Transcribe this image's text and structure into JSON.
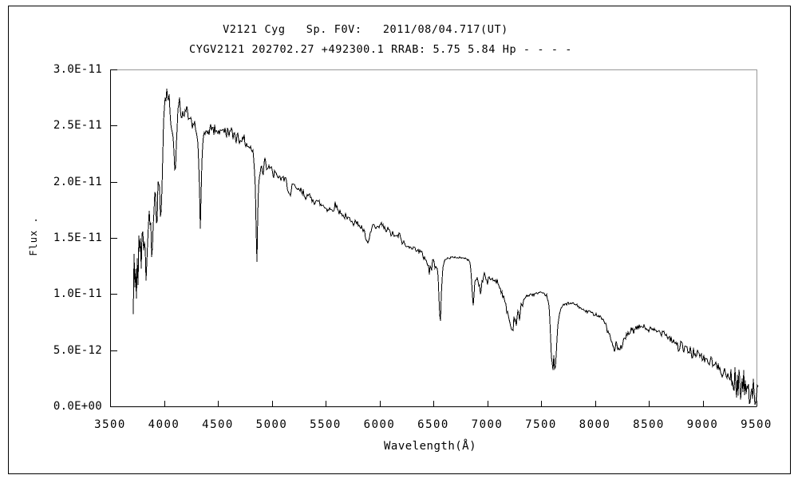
{
  "window": {
    "background": "#ffffff",
    "outer_border_color": "#000000"
  },
  "titles": {
    "line1": "V2121 Cyg   Sp. F0V:   2011/08/04.717(UT)",
    "line2": "CYGV2121 202702.27 +492300.1 RRAB: 5.75 5.84 Hp - - - -"
  },
  "chart_data": {
    "type": "line",
    "title": "V2121 Cyg   Sp. F0V:   2011/08/04.717(UT)",
    "subtitle": "CYGV2121 202702.27 +492300.1 RRAB: 5.75 5.84 Hp - - - -",
    "xlabel": "Wavelength(Å)",
    "ylabel": "Flux .",
    "xlim": [
      3500,
      9500
    ],
    "ylim": [
      0,
      3e-11
    ],
    "grid": false,
    "legend": "none",
    "x_ticks": [
      3500,
      4000,
      4500,
      5000,
      5500,
      6000,
      6500,
      7000,
      7500,
      8000,
      8500,
      9000,
      9500
    ],
    "y_tick_labels": [
      "0.0E+00",
      "5.0E-12",
      "1.0E-11",
      "1.5E-11",
      "2.0E-11",
      "2.5E-11",
      "3.0E-11"
    ],
    "line_color": "#000000",
    "axis_color": "#000000",
    "frame_top_right_color": "#999999",
    "units": {
      "x": "Angstrom",
      "y_points_scale": 1e-11
    },
    "points": [
      [
        3715,
        0.78
      ],
      [
        3722,
        1.42
      ],
      [
        3728,
        0.8
      ],
      [
        3735,
        1.25
      ],
      [
        3742,
        0.95
      ],
      [
        3750,
        1.38
      ],
      [
        3758,
        1.1
      ],
      [
        3766,
        1.5
      ],
      [
        3774,
        1.22
      ],
      [
        3782,
        1.52
      ],
      [
        3790,
        1.3
      ],
      [
        3800,
        1.55
      ],
      [
        3812,
        1.42
      ],
      [
        3822,
        1.58
      ],
      [
        3835,
        1.02
      ],
      [
        3848,
        1.55
      ],
      [
        3860,
        1.66
      ],
      [
        3874,
        1.72
      ],
      [
        3889,
        1.33
      ],
      [
        3902,
        1.76
      ],
      [
        3915,
        1.85
      ],
      [
        3926,
        1.9
      ],
      [
        3933,
        1.58
      ],
      [
        3944,
        1.93
      ],
      [
        3955,
        2.0
      ],
      [
        3963,
        1.8
      ],
      [
        3970,
        1.62
      ],
      [
        3978,
        1.85
      ],
      [
        3986,
        2.12
      ],
      [
        3994,
        2.5
      ],
      [
        4002,
        2.62
      ],
      [
        4010,
        2.76
      ],
      [
        4016,
        2.8
      ],
      [
        4020,
        2.66
      ],
      [
        4026,
        2.85
      ],
      [
        4032,
        2.78
      ],
      [
        4040,
        2.7
      ],
      [
        4048,
        2.76
      ],
      [
        4056,
        2.62
      ],
      [
        4066,
        2.5
      ],
      [
        4076,
        2.46
      ],
      [
        4086,
        2.42
      ],
      [
        4096,
        2.18
      ],
      [
        4104,
        2.02
      ],
      [
        4112,
        2.22
      ],
      [
        4122,
        2.5
      ],
      [
        4132,
        2.65
      ],
      [
        4142,
        2.74
      ],
      [
        4152,
        2.66
      ],
      [
        4162,
        2.58
      ],
      [
        4174,
        2.64
      ],
      [
        4186,
        2.56
      ],
      [
        4198,
        2.62
      ],
      [
        4208,
        2.68
      ],
      [
        4220,
        2.6
      ],
      [
        4232,
        2.54
      ],
      [
        4244,
        2.6
      ],
      [
        4256,
        2.52
      ],
      [
        4270,
        2.48
      ],
      [
        4284,
        2.52
      ],
      [
        4298,
        2.44
      ],
      [
        4312,
        2.4
      ],
      [
        4326,
        2.1
      ],
      [
        4338,
        1.56
      ],
      [
        4348,
        2.05
      ],
      [
        4360,
        2.32
      ],
      [
        4372,
        2.4
      ],
      [
        4386,
        2.44
      ],
      [
        4400,
        2.48
      ],
      [
        4415,
        2.42
      ],
      [
        4430,
        2.47
      ],
      [
        4445,
        2.5
      ],
      [
        4460,
        2.44
      ],
      [
        4475,
        2.48
      ],
      [
        4490,
        2.42
      ],
      [
        4505,
        2.47
      ],
      [
        4520,
        2.44
      ],
      [
        4535,
        2.49
      ],
      [
        4550,
        2.43
      ],
      [
        4565,
        2.46
      ],
      [
        4580,
        2.42
      ],
      [
        4595,
        2.47
      ],
      [
        4610,
        2.43
      ],
      [
        4625,
        2.45
      ],
      [
        4640,
        2.4
      ],
      [
        4655,
        2.44
      ],
      [
        4670,
        2.38
      ],
      [
        4685,
        2.42
      ],
      [
        4700,
        2.36
      ],
      [
        4715,
        2.4
      ],
      [
        4730,
        2.36
      ],
      [
        4745,
        2.38
      ],
      [
        4760,
        2.34
      ],
      [
        4775,
        2.33
      ],
      [
        4790,
        2.31
      ],
      [
        4805,
        2.3
      ],
      [
        4820,
        2.28
      ],
      [
        4835,
        2.2
      ],
      [
        4848,
        1.95
      ],
      [
        4856,
        1.55
      ],
      [
        4862,
        1.2
      ],
      [
        4868,
        1.62
      ],
      [
        4876,
        1.95
      ],
      [
        4886,
        2.06
      ],
      [
        4896,
        2.1
      ],
      [
        4908,
        2.16
      ],
      [
        4922,
        2.04
      ],
      [
        4934,
        2.26
      ],
      [
        4946,
        2.18
      ],
      [
        4958,
        2.1
      ],
      [
        4970,
        2.16
      ],
      [
        4984,
        2.12
      ],
      [
        5000,
        2.1
      ],
      [
        5016,
        2.05
      ],
      [
        5032,
        2.09
      ],
      [
        5048,
        2.03
      ],
      [
        5064,
        2.06
      ],
      [
        5080,
        2.02
      ],
      [
        5096,
        2.05
      ],
      [
        5112,
        2.0
      ],
      [
        5128,
        2.02
      ],
      [
        5144,
        1.97
      ],
      [
        5160,
        1.92
      ],
      [
        5175,
        1.86
      ],
      [
        5190,
        1.95
      ],
      [
        5205,
        1.97
      ],
      [
        5220,
        1.93
      ],
      [
        5235,
        1.95
      ],
      [
        5250,
        1.91
      ],
      [
        5265,
        1.93
      ],
      [
        5280,
        1.89
      ],
      [
        5295,
        1.91
      ],
      [
        5310,
        1.87
      ],
      [
        5325,
        1.89
      ],
      [
        5340,
        1.85
      ],
      [
        5355,
        1.87
      ],
      [
        5370,
        1.84
      ],
      [
        5385,
        1.86
      ],
      [
        5400,
        1.82
      ],
      [
        5415,
        1.84
      ],
      [
        5430,
        1.8
      ],
      [
        5445,
        1.82
      ],
      [
        5460,
        1.78
      ],
      [
        5475,
        1.8
      ],
      [
        5490,
        1.77
      ],
      [
        5505,
        1.78
      ],
      [
        5520,
        1.75
      ],
      [
        5535,
        1.77
      ],
      [
        5550,
        1.74
      ],
      [
        5565,
        1.76
      ],
      [
        5580,
        1.78
      ],
      [
        5595,
        1.8
      ],
      [
        5610,
        1.76
      ],
      [
        5625,
        1.73
      ],
      [
        5640,
        1.74
      ],
      [
        5655,
        1.71
      ],
      [
        5670,
        1.68
      ],
      [
        5685,
        1.7
      ],
      [
        5700,
        1.66
      ],
      [
        5715,
        1.68
      ],
      [
        5730,
        1.65
      ],
      [
        5745,
        1.67
      ],
      [
        5760,
        1.63
      ],
      [
        5775,
        1.65
      ],
      [
        5790,
        1.62
      ],
      [
        5805,
        1.63
      ],
      [
        5820,
        1.6
      ],
      [
        5835,
        1.59
      ],
      [
        5850,
        1.57
      ],
      [
        5865,
        1.53
      ],
      [
        5880,
        1.47
      ],
      [
        5892,
        1.43
      ],
      [
        5904,
        1.48
      ],
      [
        5916,
        1.54
      ],
      [
        5930,
        1.59
      ],
      [
        5945,
        1.62
      ],
      [
        5960,
        1.59
      ],
      [
        5975,
        1.57
      ],
      [
        5990,
        1.59
      ],
      [
        6005,
        1.61
      ],
      [
        6020,
        1.62
      ],
      [
        6035,
        1.6
      ],
      [
        6050,
        1.58
      ],
      [
        6065,
        1.56
      ],
      [
        6080,
        1.58
      ],
      [
        6095,
        1.55
      ],
      [
        6110,
        1.53
      ],
      [
        6125,
        1.54
      ],
      [
        6140,
        1.52
      ],
      [
        6155,
        1.5
      ],
      [
        6170,
        1.52
      ],
      [
        6185,
        1.53
      ],
      [
        6200,
        1.49
      ],
      [
        6215,
        1.46
      ],
      [
        6230,
        1.45
      ],
      [
        6245,
        1.43
      ],
      [
        6260,
        1.41
      ],
      [
        6275,
        1.43
      ],
      [
        6290,
        1.44
      ],
      [
        6305,
        1.41
      ],
      [
        6320,
        1.4
      ],
      [
        6335,
        1.41
      ],
      [
        6350,
        1.4
      ],
      [
        6365,
        1.38
      ],
      [
        6380,
        1.37
      ],
      [
        6395,
        1.36
      ],
      [
        6410,
        1.33
      ],
      [
        6425,
        1.32
      ],
      [
        6440,
        1.29
      ],
      [
        6455,
        1.25
      ],
      [
        6463,
        1.17
      ],
      [
        6472,
        1.27
      ],
      [
        6482,
        1.2
      ],
      [
        6492,
        1.29
      ],
      [
        6502,
        1.3
      ],
      [
        6512,
        1.24
      ],
      [
        6522,
        1.27
      ],
      [
        6532,
        1.25
      ],
      [
        6542,
        1.22
      ],
      [
        6552,
        0.98
      ],
      [
        6560,
        0.8
      ],
      [
        6566,
        0.73
      ],
      [
        6572,
        0.95
      ],
      [
        6580,
        1.1
      ],
      [
        6590,
        1.25
      ],
      [
        6602,
        1.29
      ],
      [
        6616,
        1.31
      ],
      [
        6632,
        1.32
      ],
      [
        6650,
        1.32
      ],
      [
        6670,
        1.33
      ],
      [
        6690,
        1.32
      ],
      [
        6710,
        1.33
      ],
      [
        6730,
        1.32
      ],
      [
        6750,
        1.33
      ],
      [
        6770,
        1.32
      ],
      [
        6790,
        1.32
      ],
      [
        6810,
        1.31
      ],
      [
        6828,
        1.3
      ],
      [
        6844,
        1.28
      ],
      [
        6856,
        1.12
      ],
      [
        6866,
        0.92
      ],
      [
        6872,
        0.87
      ],
      [
        6880,
        1.05
      ],
      [
        6890,
        1.12
      ],
      [
        6902,
        1.15
      ],
      [
        6914,
        1.12
      ],
      [
        6926,
        1.08
      ],
      [
        6938,
        1.02
      ],
      [
        6950,
        1.08
      ],
      [
        6962,
        1.14
      ],
      [
        6974,
        1.19
      ],
      [
        6988,
        1.13
      ],
      [
        7002,
        1.1
      ],
      [
        7016,
        1.13
      ],
      [
        7030,
        1.15
      ],
      [
        7044,
        1.13
      ],
      [
        7058,
        1.12
      ],
      [
        7072,
        1.13
      ],
      [
        7086,
        1.12
      ],
      [
        7100,
        1.1
      ],
      [
        7114,
        1.07
      ],
      [
        7128,
        1.04
      ],
      [
        7142,
        1.0
      ],
      [
        7156,
        0.95
      ],
      [
        7170,
        0.9
      ],
      [
        7184,
        0.86
      ],
      [
        7198,
        0.8
      ],
      [
        7212,
        0.74
      ],
      [
        7222,
        0.7
      ],
      [
        7232,
        0.67
      ],
      [
        7242,
        0.72
      ],
      [
        7252,
        0.82
      ],
      [
        7262,
        0.76
      ],
      [
        7272,
        0.74
      ],
      [
        7282,
        0.85
      ],
      [
        7292,
        0.8
      ],
      [
        7302,
        0.78
      ],
      [
        7314,
        0.88
      ],
      [
        7326,
        0.92
      ],
      [
        7340,
        0.95
      ],
      [
        7355,
        0.97
      ],
      [
        7370,
        0.99
      ],
      [
        7390,
        0.98
      ],
      [
        7410,
        1.0
      ],
      [
        7430,
        0.99
      ],
      [
        7450,
        1.01
      ],
      [
        7470,
        1.0
      ],
      [
        7490,
        1.01
      ],
      [
        7510,
        1.0
      ],
      [
        7530,
        1.0
      ],
      [
        7550,
        0.99
      ],
      [
        7565,
        0.95
      ],
      [
        7578,
        0.85
      ],
      [
        7588,
        0.62
      ],
      [
        7596,
        0.45
      ],
      [
        7604,
        0.37
      ],
      [
        7612,
        0.32
      ],
      [
        7618,
        0.45
      ],
      [
        7624,
        0.34
      ],
      [
        7630,
        0.31
      ],
      [
        7638,
        0.42
      ],
      [
        7648,
        0.6
      ],
      [
        7658,
        0.74
      ],
      [
        7668,
        0.82
      ],
      [
        7680,
        0.86
      ],
      [
        7695,
        0.89
      ],
      [
        7710,
        0.9
      ],
      [
        7730,
        0.91
      ],
      [
        7750,
        0.92
      ],
      [
        7770,
        0.91
      ],
      [
        7790,
        0.92
      ],
      [
        7810,
        0.91
      ],
      [
        7830,
        0.9
      ],
      [
        7850,
        0.89
      ],
      [
        7870,
        0.87
      ],
      [
        7890,
        0.86
      ],
      [
        7910,
        0.85
      ],
      [
        7930,
        0.84
      ],
      [
        7950,
        0.85
      ],
      [
        7970,
        0.83
      ],
      [
        7990,
        0.82
      ],
      [
        8010,
        0.82
      ],
      [
        8030,
        0.81
      ],
      [
        8050,
        0.8
      ],
      [
        8070,
        0.78
      ],
      [
        8090,
        0.75
      ],
      [
        8110,
        0.7
      ],
      [
        8130,
        0.64
      ],
      [
        8150,
        0.59
      ],
      [
        8165,
        0.55
      ],
      [
        8180,
        0.5
      ],
      [
        8195,
        0.57
      ],
      [
        8210,
        0.52
      ],
      [
        8225,
        0.47
      ],
      [
        8240,
        0.54
      ],
      [
        8255,
        0.52
      ],
      [
        8270,
        0.58
      ],
      [
        8285,
        0.61
      ],
      [
        8300,
        0.63
      ],
      [
        8320,
        0.66
      ],
      [
        8340,
        0.68
      ],
      [
        8360,
        0.67
      ],
      [
        8380,
        0.69
      ],
      [
        8400,
        0.7
      ],
      [
        8420,
        0.71
      ],
      [
        8440,
        0.72
      ],
      [
        8460,
        0.7
      ],
      [
        8480,
        0.69
      ],
      [
        8500,
        0.68
      ],
      [
        8520,
        0.69
      ],
      [
        8540,
        0.67
      ],
      [
        8560,
        0.68
      ],
      [
        8580,
        0.66
      ],
      [
        8600,
        0.67
      ],
      [
        8620,
        0.65
      ],
      [
        8640,
        0.68
      ],
      [
        8660,
        0.64
      ],
      [
        8680,
        0.62
      ],
      [
        8700,
        0.61
      ],
      [
        8720,
        0.59
      ],
      [
        8740,
        0.58
      ],
      [
        8760,
        0.55
      ],
      [
        8780,
        0.52
      ],
      [
        8800,
        0.55
      ],
      [
        8820,
        0.5
      ],
      [
        8840,
        0.53
      ],
      [
        8860,
        0.48
      ],
      [
        8880,
        0.51
      ],
      [
        8900,
        0.46
      ],
      [
        8920,
        0.5
      ],
      [
        8940,
        0.43
      ],
      [
        8960,
        0.48
      ],
      [
        8980,
        0.42
      ],
      [
        9000,
        0.45
      ],
      [
        9020,
        0.4
      ],
      [
        9040,
        0.43
      ],
      [
        9060,
        0.38
      ],
      [
        9080,
        0.41
      ],
      [
        9100,
        0.36
      ],
      [
        9120,
        0.38
      ],
      [
        9140,
        0.33
      ],
      [
        9160,
        0.36
      ],
      [
        9180,
        0.3
      ],
      [
        9200,
        0.33
      ],
      [
        9220,
        0.27
      ],
      [
        9240,
        0.24
      ],
      [
        9260,
        0.28
      ],
      [
        9280,
        0.2
      ],
      [
        9300,
        0.26
      ],
      [
        9320,
        0.15
      ],
      [
        9340,
        0.28
      ],
      [
        9360,
        0.1
      ],
      [
        9380,
        0.25
      ],
      [
        9400,
        0.08
      ],
      [
        9420,
        0.3
      ],
      [
        9440,
        0.06
      ],
      [
        9460,
        0.22
      ],
      [
        9480,
        0.04
      ],
      [
        9500,
        0.18
      ],
      [
        9515,
        0.1
      ]
    ],
    "noise_segments": [
      [
        3715,
        3790,
        0.2
      ],
      [
        3790,
        3960,
        0.1
      ],
      [
        3960,
        4340,
        0.035
      ],
      [
        4340,
        4850,
        0.042
      ],
      [
        4850,
        5600,
        0.035
      ],
      [
        5600,
        6540,
        0.025
      ],
      [
        6590,
        6850,
        0.008
      ],
      [
        6850,
        7160,
        0.03
      ],
      [
        7160,
        7330,
        0.04
      ],
      [
        7330,
        7570,
        0.012
      ],
      [
        7570,
        7660,
        0.02
      ],
      [
        7660,
        8100,
        0.012
      ],
      [
        8100,
        8300,
        0.035
      ],
      [
        8300,
        8700,
        0.025
      ],
      [
        8700,
        9250,
        0.045
      ],
      [
        9250,
        9520,
        0.13
      ]
    ]
  },
  "axis": {
    "x_title": "Wavelength(Å)",
    "y_title": "Flux ."
  }
}
